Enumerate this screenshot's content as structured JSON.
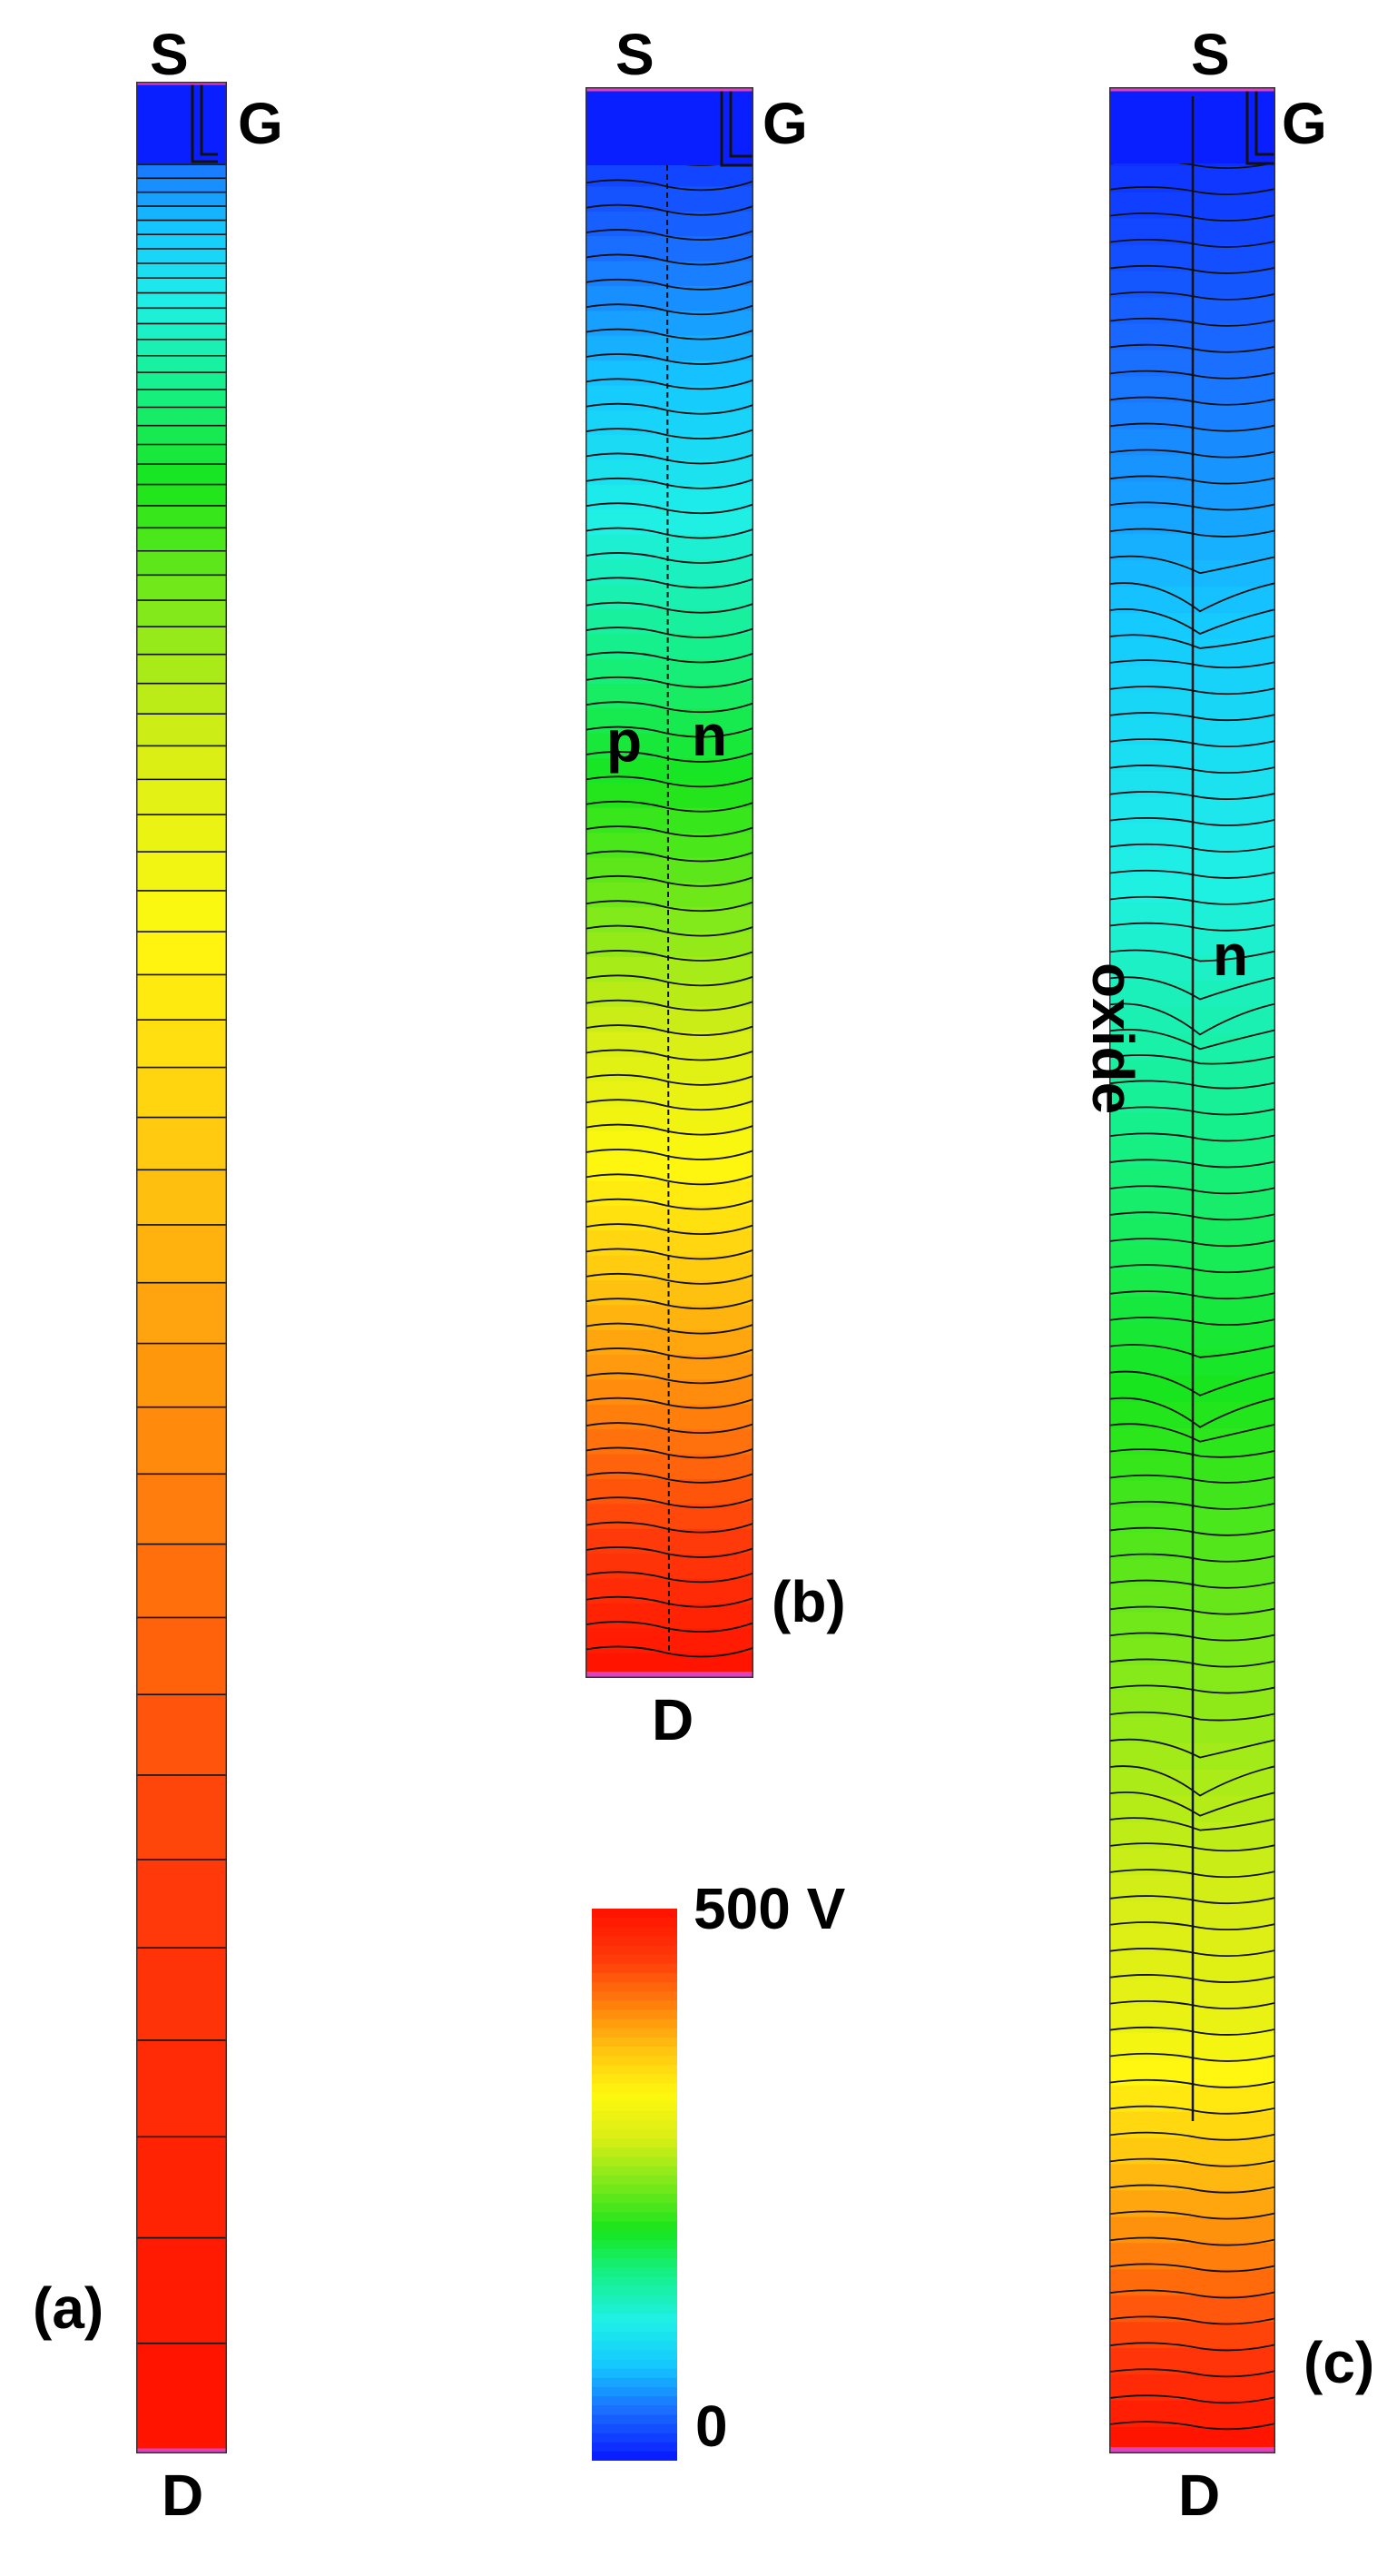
{
  "panels": [
    {
      "id": "a",
      "label": "(a)",
      "source": "S",
      "gate": "G",
      "drain": "D"
    },
    {
      "id": "b",
      "label": "(b)",
      "source": "S",
      "gate": "G",
      "drain": "D",
      "region_left": "p",
      "region_right": "n"
    },
    {
      "id": "c",
      "label": "(c)",
      "source": "S",
      "gate": "G",
      "drain": "D",
      "region_left": "oxide",
      "region_right": "n"
    }
  ],
  "colorbar": {
    "max_label": "500 V",
    "min_label": "0",
    "min": 0,
    "max": 500,
    "unit": "V"
  },
  "colors": {
    "scale": [
      "#0a1fff",
      "#1a6dff",
      "#15c8ff",
      "#1ff0e6",
      "#16f08a",
      "#18e51c",
      "#7ae81a",
      "#d8ee16",
      "#fff80f",
      "#ffc20f",
      "#ff7f0c",
      "#ff3a0a",
      "#ff1400"
    ],
    "contact": "#e040c0",
    "contour": "#111111"
  }
}
